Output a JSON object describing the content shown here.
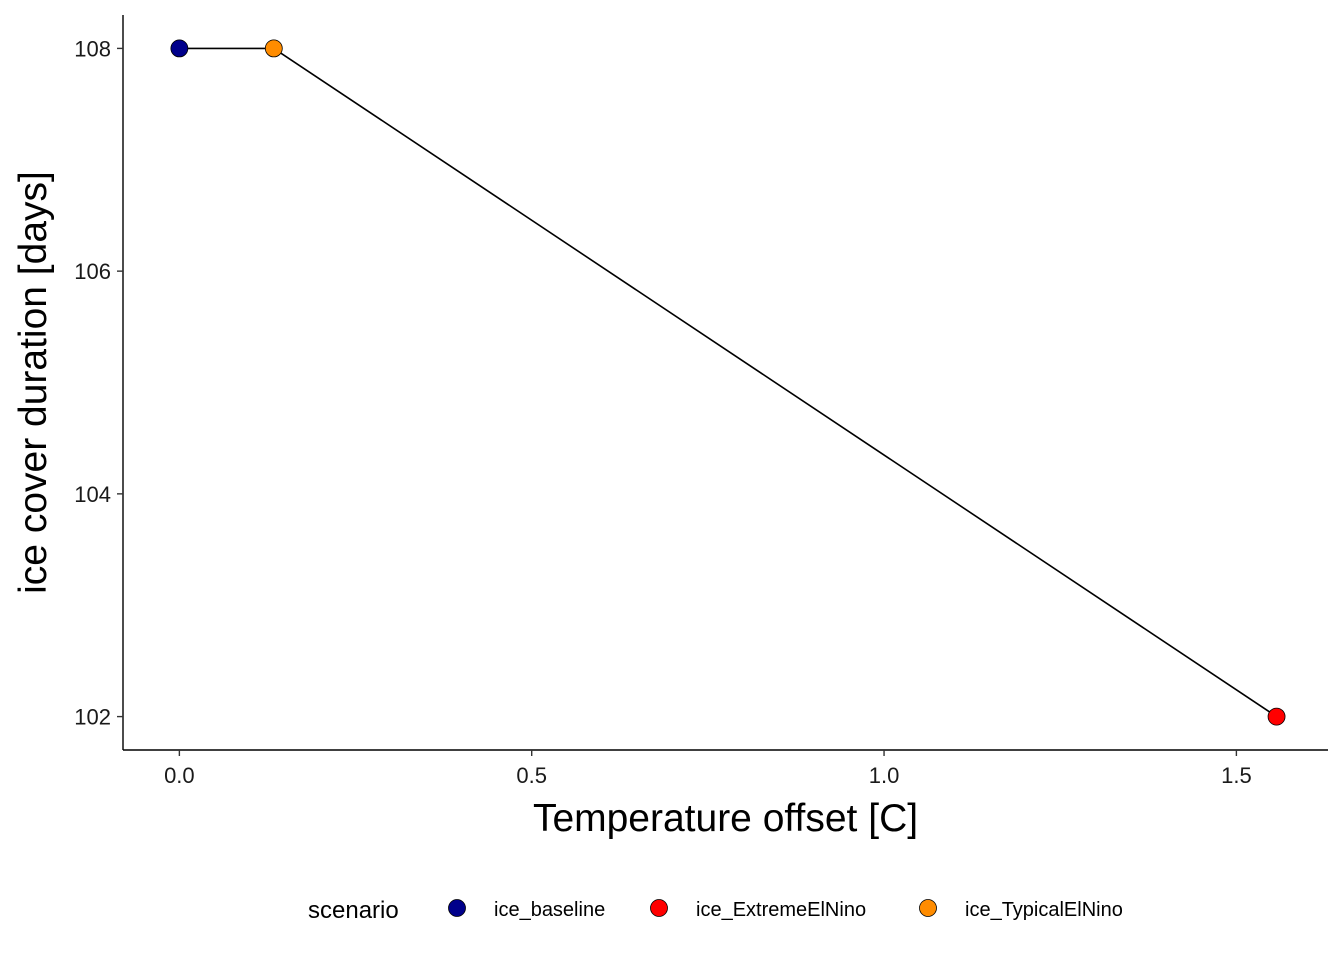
{
  "chart_data": {
    "type": "line",
    "xlabel": "Temperature offset [C]",
    "ylabel": "ice cover duration [days]",
    "xlim": [
      -0.08,
      1.63
    ],
    "ylim": [
      101.7,
      108.3
    ],
    "x_ticks": [
      0.0,
      0.5,
      1.0,
      1.5
    ],
    "x_tick_labels": [
      "0.0",
      "0.5",
      "1.0",
      "1.5"
    ],
    "y_ticks": [
      102,
      104,
      106,
      108
    ],
    "y_tick_labels": [
      "102",
      "104",
      "106",
      "108"
    ],
    "grid": false,
    "legend_position": "bottom",
    "line_color": "#000000",
    "series": [
      {
        "name": "ice_baseline",
        "x": 0.0,
        "y": 108,
        "color": "#00008B"
      },
      {
        "name": "ice_TypicalElNino",
        "x": 0.134,
        "y": 108,
        "color": "#FF8C00"
      },
      {
        "name": "ice_ExtremeElNino",
        "x": 1.557,
        "y": 102,
        "color": "#FF0000"
      }
    ],
    "line_order": [
      "ice_baseline",
      "ice_TypicalElNino",
      "ice_ExtremeElNino"
    ],
    "legend": {
      "title": "scenario",
      "entries": [
        {
          "label": "ice_baseline",
          "color": "#00008B"
        },
        {
          "label": "ice_ExtremeElNino",
          "color": "#FF0000"
        },
        {
          "label": "ice_TypicalElNino",
          "color": "#FF8C00"
        }
      ]
    }
  }
}
